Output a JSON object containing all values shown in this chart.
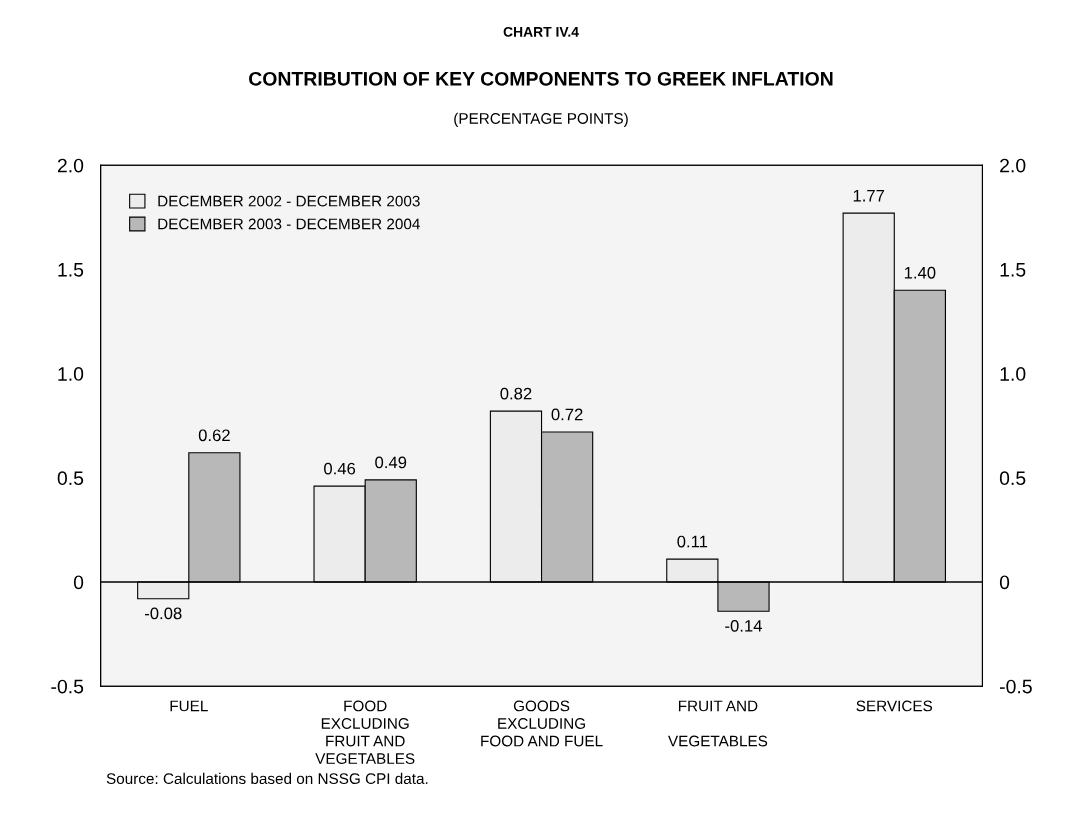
{
  "chart_data": {
    "type": "bar",
    "title": "CONTRIBUTION OF KEY COMPONENTS TO GREEK INFLATION",
    "subtitle": "(PERCENTAGE POINTS)",
    "annotations": [
      "CHART IV.4",
      "Source: Calculations based on NSSG CPI data."
    ],
    "categories": [
      "FUEL",
      "FOOD\nEXCLUDING\nFRUIT AND\nVEGETABLES",
      "GOODS\nEXCLUDING\nFOOD AND FUEL",
      "FRUIT AND\n\nVEGETABLES",
      "SERVICES"
    ],
    "series": [
      {
        "name": "DECEMBER 2002 - DECEMBER 2003",
        "color": "#ececec",
        "values": [
          -0.08,
          0.46,
          0.82,
          0.11,
          1.77
        ],
        "value_labels": [
          "-0.08",
          "0.46",
          "0.82",
          "0.11",
          "1.77"
        ]
      },
      {
        "name": "DECEMBER 2003 - DECEMBER 2004",
        "color": "#b8b8b8",
        "values": [
          0.62,
          0.49,
          0.72,
          -0.14,
          1.4
        ],
        "value_labels": [
          "0.62",
          "0.49",
          "0.72",
          "-0.14",
          "1.40"
        ]
      }
    ],
    "ylim": [
      -0.5,
      2.0
    ],
    "yticks": [
      {
        "value": -0.5,
        "label": "-0.5"
      },
      0,
      {
        "value": 0.5,
        "label": "0.5"
      },
      {
        "value": 1.0,
        "label": "1.0"
      },
      {
        "value": 1.5,
        "label": "1.5"
      },
      {
        "value": 2.0,
        "label": "2.0"
      }
    ],
    "y2lim": [
      -0.5,
      2.0
    ],
    "y2ticks": [
      {
        "value": -0.5,
        "label": "-0.5"
      },
      0,
      {
        "value": 0.5,
        "label": "0.5"
      },
      {
        "value": 1.0,
        "label": "1.0"
      },
      {
        "value": 1.5,
        "label": "1.5"
      },
      {
        "value": 2.0,
        "label": "2.0"
      }
    ],
    "ref_lines": [
      {
        "axis": "y",
        "value": 0,
        "color": "#000000"
      }
    ],
    "grid": false,
    "legend": "top left"
  }
}
